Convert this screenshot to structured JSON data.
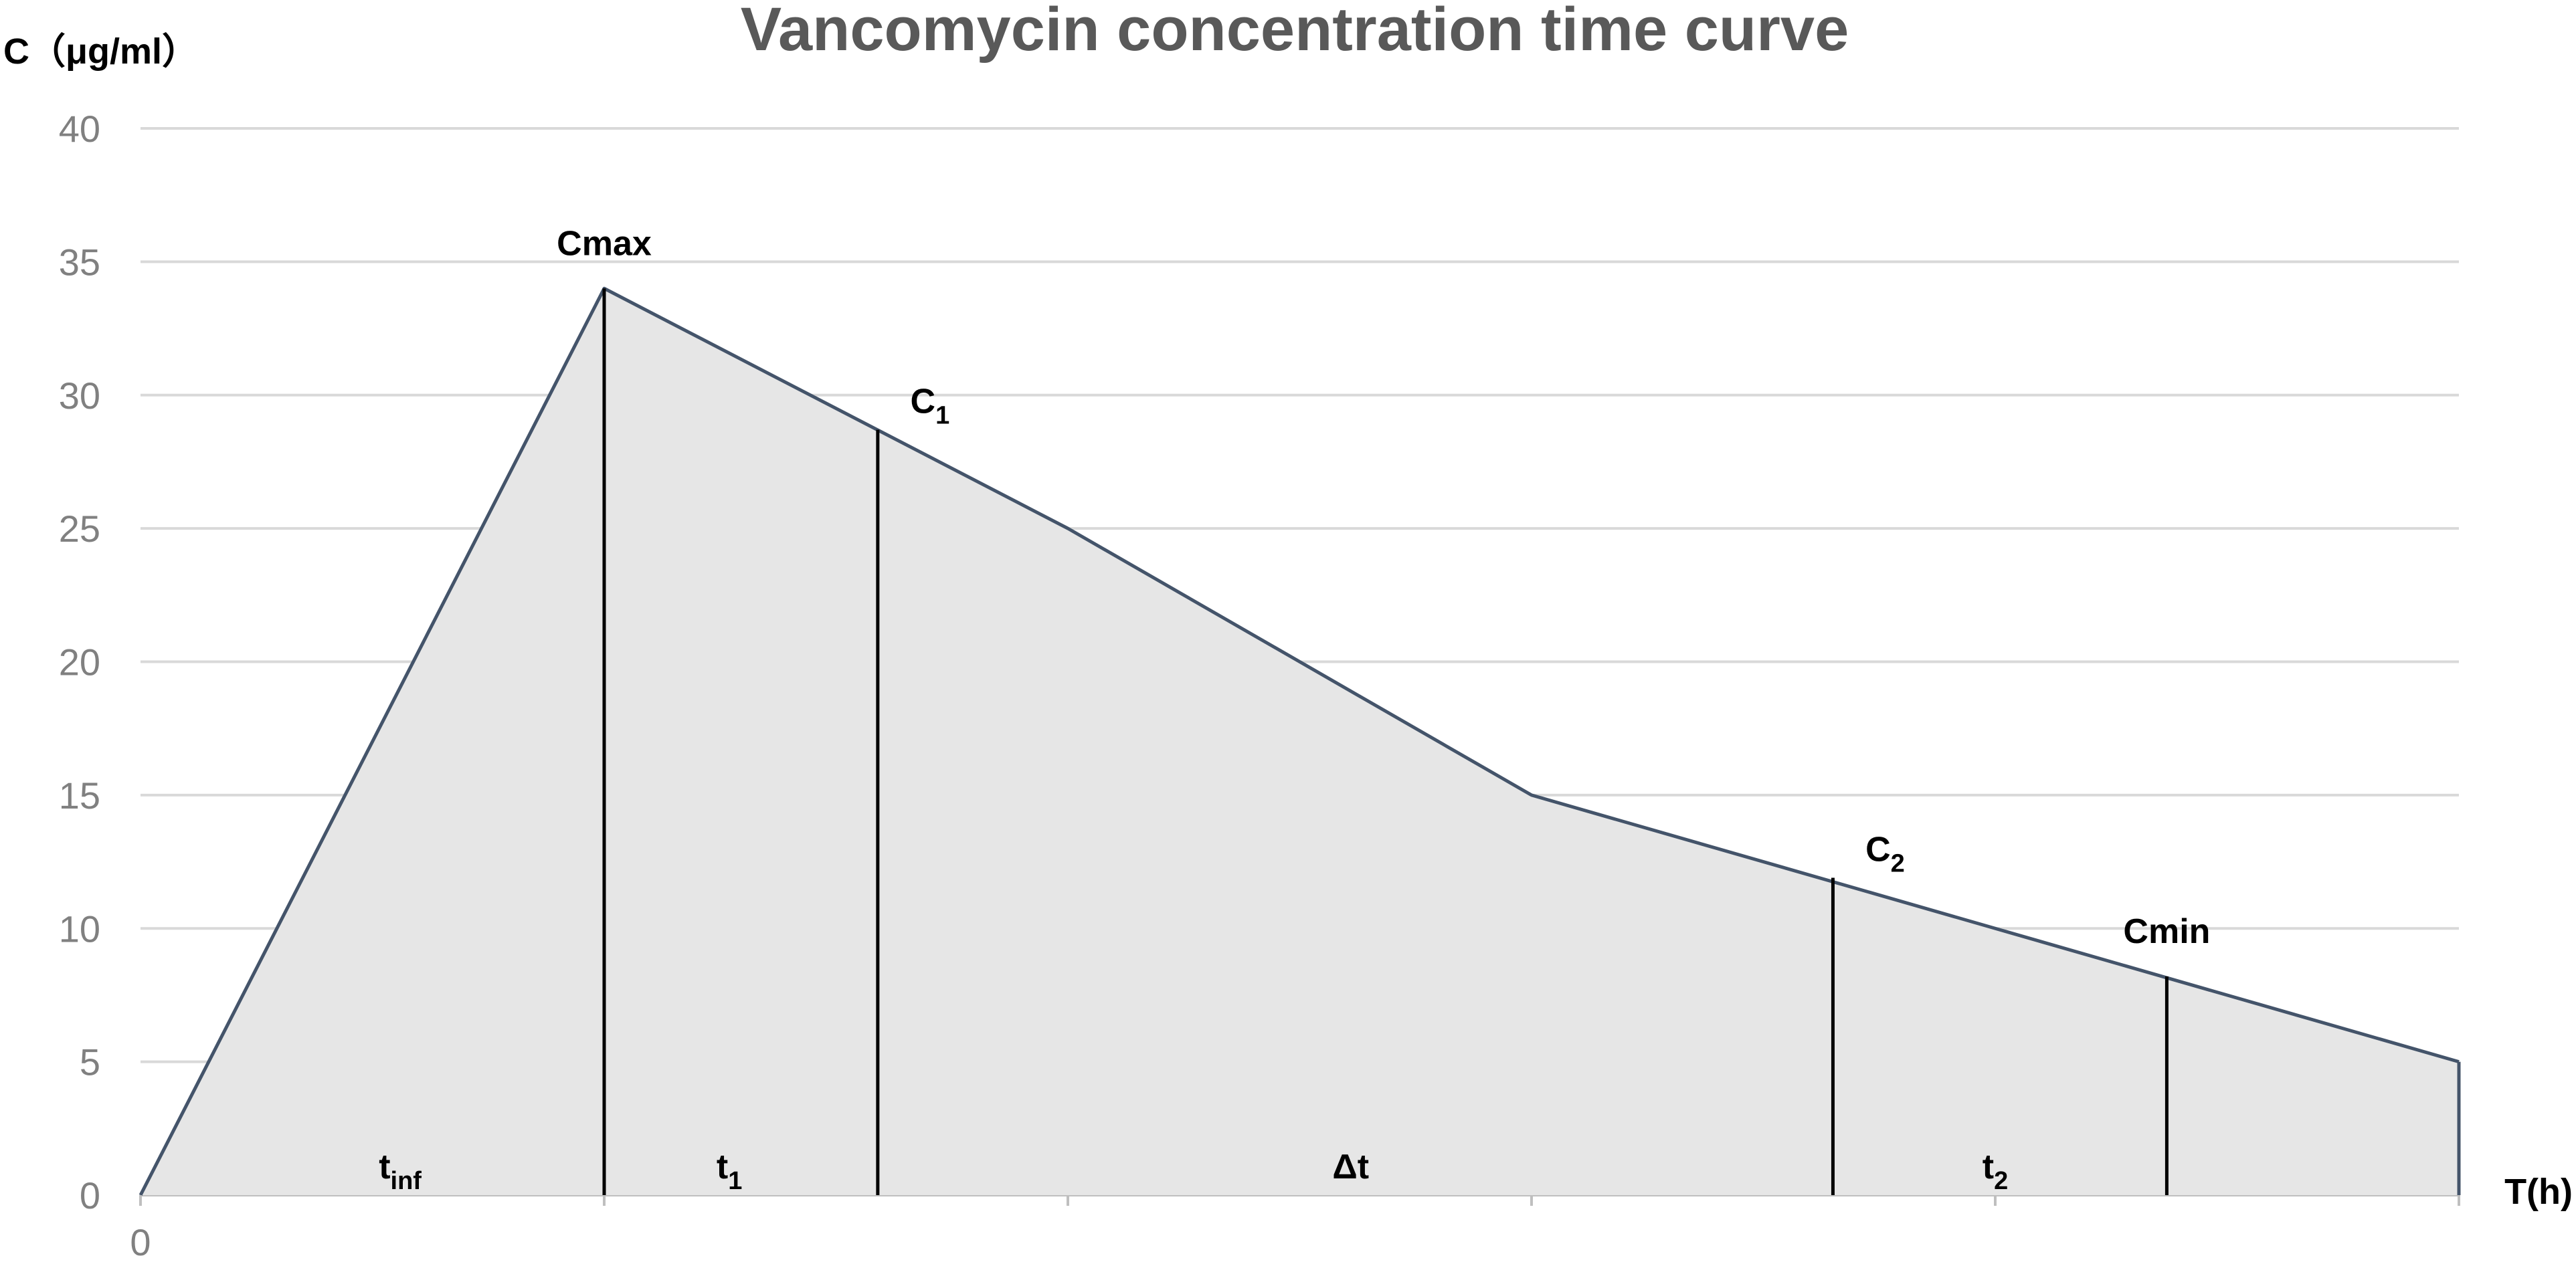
{
  "chart_data": {
    "type": "area",
    "title": "Vancomycin concentration time curve",
    "ylabel": "C（μg/ml）",
    "xlabel": "T(h)",
    "ylim": [
      0,
      40
    ],
    "yticks": [
      0,
      5,
      10,
      15,
      20,
      25,
      30,
      35,
      40
    ],
    "xlim": [
      0,
      5
    ],
    "xticks": [
      0
    ],
    "grid": true,
    "colors": {
      "fill": "#e6e6e6",
      "line": "#44546a",
      "grid": "#d9d9d9",
      "marker_line": "#000000"
    },
    "series": [
      {
        "x": [
          0,
          1,
          2,
          3,
          4,
          5
        ],
        "y": [
          0,
          34,
          25,
          15,
          10,
          5
        ]
      }
    ],
    "markers": [
      {
        "label": "Cmax",
        "base": "C",
        "sub": "max",
        "x": 1.0,
        "y": 34
      },
      {
        "label": "C1",
        "base": "C",
        "sub": "1",
        "x": 1.59,
        "y": 28.7
      },
      {
        "label": "C2",
        "base": "C",
        "sub": "2",
        "x": 3.65,
        "y": 11.9
      },
      {
        "label": "Cmin",
        "base": "C",
        "sub": "min",
        "x": 4.37,
        "y": 8.2
      }
    ],
    "segments": [
      {
        "label": "tinf",
        "base": "t",
        "sub": "inf",
        "x": 0.56
      },
      {
        "label": "t1",
        "base": "t",
        "sub": "1",
        "x": 1.27
      },
      {
        "label": "Δt",
        "base": "Δt",
        "sub": "",
        "x": 2.61
      },
      {
        "label": "t2",
        "base": "t",
        "sub": "2",
        "x": 4.0
      }
    ]
  }
}
